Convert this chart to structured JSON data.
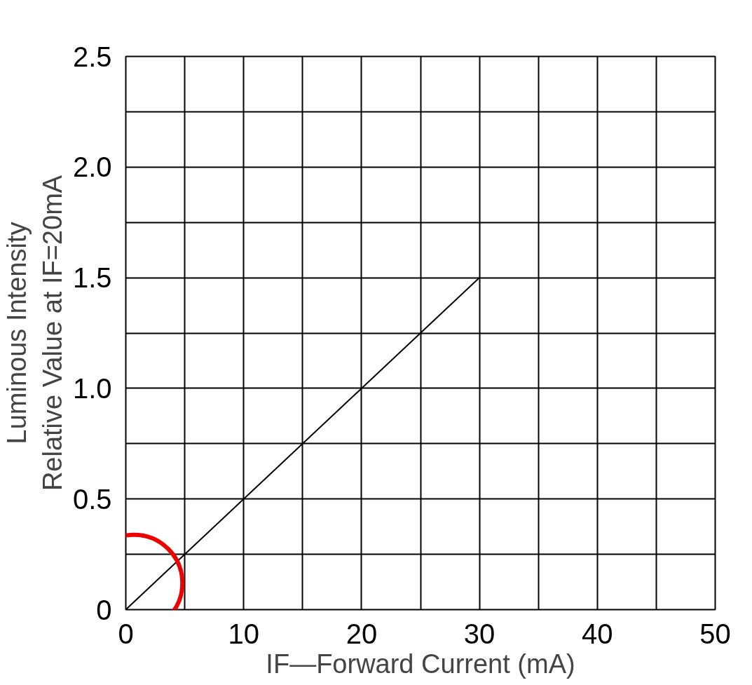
{
  "chart_data": {
    "type": "line",
    "xlabel": "IF—Forward Current (mA)",
    "ylabel": "Luminous Intensity\nRelative Value at IF=20mA",
    "x": [
      0,
      30
    ],
    "series": [
      {
        "color": "#000000",
        "values": [
          0,
          1.5
        ]
      }
    ],
    "xlim": [
      0,
      50
    ],
    "ylim": [
      0,
      2.5
    ],
    "xticks": [
      0,
      {
        "value": 5,
        "label": null
      },
      10,
      {
        "value": 15,
        "label": null
      },
      20,
      {
        "value": 25,
        "label": null
      },
      30,
      {
        "value": 35,
        "label": null
      },
      40,
      {
        "value": 45,
        "label": null
      },
      50
    ],
    "yticks": [
      0,
      {
        "value": 0.25,
        "label": null
      },
      0.5,
      {
        "value": 0.75,
        "label": null
      },
      {
        "value": 1,
        "label": "1.0"
      },
      {
        "value": 1.25,
        "label": null
      },
      1.5,
      {
        "value": 1.75,
        "label": null
      },
      {
        "value": 2,
        "label": "2.0"
      },
      {
        "value": 2.25,
        "label": null
      },
      2.5
    ],
    "grid": true,
    "marker": "none",
    "line_style": "solid"
  }
}
